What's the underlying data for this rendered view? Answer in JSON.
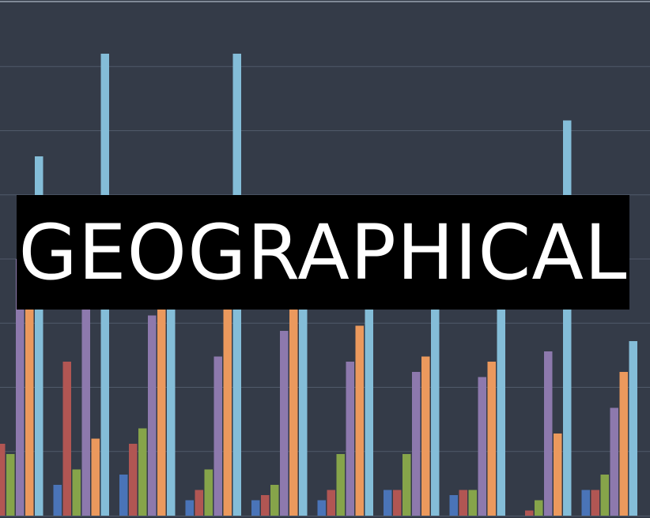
{
  "banner": {
    "text": "GEOGRAPHICAL"
  },
  "colors": {
    "background": "#343b48",
    "gridline": "#505a6a",
    "top_border": "#9aa3b1",
    "banner_bg": "#000000",
    "banner_text": "#ffffff"
  },
  "chart_data": {
    "type": "bar",
    "title": "",
    "xlabel": "",
    "ylabel": "",
    "ylim": [
      0,
      100
    ],
    "grid": true,
    "categories": [
      "",
      "",
      "",
      "",
      "",
      "",
      "",
      "",
      "",
      ""
    ],
    "series": [
      {
        "color": "#4a74b8",
        "values": [
          1,
          6,
          8,
          3,
          3,
          3,
          5,
          4,
          0,
          5
        ]
      },
      {
        "color": "#b15653",
        "values": [
          14,
          30,
          14,
          5,
          4,
          5,
          5,
          5,
          1,
          5
        ]
      },
      {
        "color": "#86a44a",
        "values": [
          12,
          9,
          17,
          9,
          6,
          12,
          12,
          5,
          3,
          8
        ]
      },
      {
        "color": "#8d79ad",
        "values": [
          50,
          53,
          39,
          31,
          36,
          30,
          28,
          27,
          32,
          21
        ]
      },
      {
        "color": "#eb995d",
        "values": [
          52,
          15,
          48,
          42,
          49,
          37,
          31,
          30,
          16,
          28
        ]
      },
      {
        "color": "#84bdd8",
        "values": [
          70,
          90,
          52,
          90,
          62,
          47,
          49,
          55,
          77,
          34
        ]
      }
    ]
  }
}
